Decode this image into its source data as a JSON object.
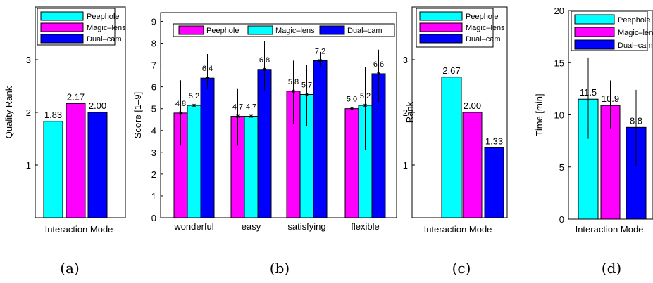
{
  "colors": {
    "Peephole": "#00ffff",
    "Magic-lens": "#ff00ff",
    "Dual-cam": "#0000ff"
  },
  "chart_data": [
    {
      "id": "a",
      "type": "bar",
      "caption": "(a)",
      "ylabel": "Quality Rank",
      "xlabel": "Interaction Mode",
      "ylim": [
        0,
        4
      ],
      "yticks": [
        "1",
        "2",
        "3"
      ],
      "legend_position": "top",
      "legend": [
        "Peephole",
        "Magic–lens",
        "Dual–cam"
      ],
      "bars": [
        {
          "series": "Peephole",
          "value": 1.83,
          "label": "1.83"
        },
        {
          "series": "Magic-lens",
          "value": 2.17,
          "label": "2.17"
        },
        {
          "series": "Dual-cam",
          "value": 2.0,
          "label": "2.00"
        }
      ]
    },
    {
      "id": "b",
      "type": "bar",
      "caption": "(b)",
      "ylabel": "Score [1–9]",
      "xlabel": "",
      "ylim": [
        0,
        9.4
      ],
      "yticks": [
        "0",
        "1",
        "2",
        "3",
        "4",
        "5",
        "6",
        "7",
        "8",
        "9"
      ],
      "legend_position": "top",
      "legend": [
        "Peephole",
        "Magic–lens",
        "Dual–cam"
      ],
      "categories": [
        "wonderful",
        "easy",
        "satisfying",
        "flexible"
      ],
      "series": [
        {
          "name": "Peephole",
          "key": "Magic-lens",
          "values": [
            4.8,
            4.65,
            5.8,
            5.0
          ],
          "labels": [
            "4.8",
            "4.7",
            "5.8",
            "5.0"
          ],
          "err_low": [
            3.3,
            3.3,
            4.3,
            3.3
          ],
          "err_high": [
            6.3,
            5.9,
            7.2,
            6.6
          ]
        },
        {
          "name": "Magic–lens",
          "key": "Peephole",
          "values": [
            5.15,
            4.65,
            5.65,
            5.15
          ],
          "labels": [
            "5.2",
            "4.7",
            "5.7",
            "5.2"
          ],
          "err_low": [
            3.7,
            3.3,
            4.2,
            3.1
          ],
          "err_high": [
            6.0,
            6.0,
            7.0,
            6.9
          ]
        },
        {
          "name": "Dual–cam",
          "key": "Dual-cam",
          "values": [
            6.4,
            6.8,
            7.2,
            6.6
          ],
          "labels": [
            "6.4",
            "6.8",
            "7.2",
            "6.6"
          ],
          "err_low": [
            5.9,
            5.8,
            6.9,
            5.3
          ],
          "err_high": [
            7.5,
            8.1,
            7.6,
            7.7
          ]
        }
      ]
    },
    {
      "id": "c",
      "type": "bar",
      "caption": "(c)",
      "ylabel": "Rank",
      "xlabel": "Interaction Mode",
      "ylim": [
        0,
        4
      ],
      "yticks": [
        "1",
        "2",
        "3"
      ],
      "legend_position": "top",
      "legend": [
        "Peephole",
        "Magic–lens",
        "Dual–cam"
      ],
      "bars": [
        {
          "series": "Peephole",
          "value": 2.67,
          "label": "2.67"
        },
        {
          "series": "Magic-lens",
          "value": 2.0,
          "label": "2.00"
        },
        {
          "series": "Dual-cam",
          "value": 1.33,
          "label": "1.33"
        }
      ]
    },
    {
      "id": "d",
      "type": "bar",
      "caption": "(d)",
      "ylabel": "Time [min]",
      "xlabel": "Interaction Mode",
      "ylim": [
        0,
        20
      ],
      "yticks": [
        "0",
        "5",
        "10",
        "15",
        "20"
      ],
      "legend_position": "top",
      "legend": [
        "Peephole",
        "Magic–lens",
        "Dual–cam"
      ],
      "bars": [
        {
          "series": "Peephole",
          "value": 11.5,
          "label": "11.5",
          "err": [
            7.7,
            15.5
          ]
        },
        {
          "series": "Magic-lens",
          "value": 10.9,
          "label": "10.9",
          "err": [
            8.7,
            13.3
          ]
        },
        {
          "series": "Dual-cam",
          "value": 8.8,
          "label": "8.8",
          "err": [
            5.1,
            12.4
          ]
        }
      ]
    }
  ]
}
